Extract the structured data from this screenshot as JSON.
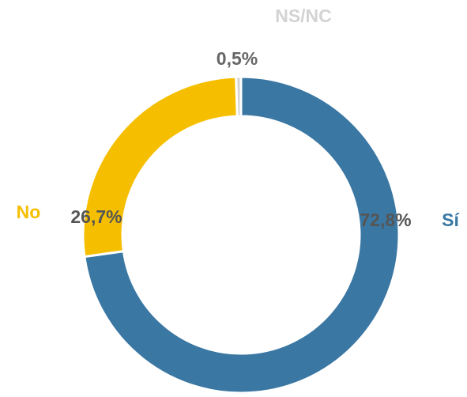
{
  "chart_data": {
    "type": "donut",
    "categories": [
      "Sí",
      "No",
      "NS/NC"
    ],
    "values": [
      72.8,
      26.7,
      0.5
    ],
    "value_labels": [
      "72,8%",
      "26,7%",
      "0,5%"
    ],
    "colors": [
      "#3a77a3",
      "#f5bf00",
      "#d3d3d3"
    ]
  }
}
